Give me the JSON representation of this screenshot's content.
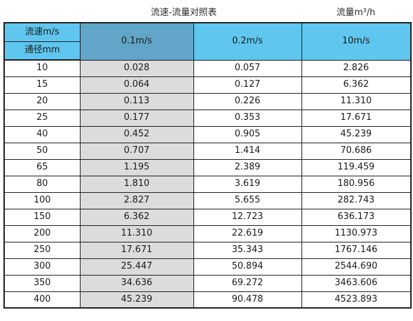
{
  "page": {
    "title": "流速-流量对照表",
    "flow_unit_label": "流量m³/h"
  },
  "chart_data": {
    "type": "table",
    "title": "流速-流量对照表",
    "unit_label": "流量m³/h",
    "header": {
      "velocity_label": "流速m/s",
      "diameter_label": "通径mm",
      "velocity_columns": [
        "0.1m/s",
        "0.2m/s",
        "10m/s"
      ]
    },
    "rows": [
      {
        "diameter": "10",
        "flow_0_1": "0.028",
        "flow_0_2": "0.057",
        "flow_10": "2.826"
      },
      {
        "diameter": "15",
        "flow_0_1": "0.064",
        "flow_0_2": "0.127",
        "flow_10": "6.362"
      },
      {
        "diameter": "20",
        "flow_0_1": "0.113",
        "flow_0_2": "0.226",
        "flow_10": "11.310"
      },
      {
        "diameter": "25",
        "flow_0_1": "0.177",
        "flow_0_2": "0.353",
        "flow_10": "17.671"
      },
      {
        "diameter": "40",
        "flow_0_1": "0.452",
        "flow_0_2": "0.905",
        "flow_10": "45.239"
      },
      {
        "diameter": "50",
        "flow_0_1": "0.707",
        "flow_0_2": "1.414",
        "flow_10": "70.686"
      },
      {
        "diameter": "65",
        "flow_0_1": "1.195",
        "flow_0_2": "2.389",
        "flow_10": "119.459"
      },
      {
        "diameter": "80",
        "flow_0_1": "1.810",
        "flow_0_2": "3.619",
        "flow_10": "180.956"
      },
      {
        "diameter": "100",
        "flow_0_1": "2.827",
        "flow_0_2": "5.655",
        "flow_10": "282.743"
      },
      {
        "diameter": "150",
        "flow_0_1": "6.362",
        "flow_0_2": "12.723",
        "flow_10": "636.173"
      },
      {
        "diameter": "200",
        "flow_0_1": "11.310",
        "flow_0_2": "22.619",
        "flow_10": "1130.973"
      },
      {
        "diameter": "250",
        "flow_0_1": "17.671",
        "flow_0_2": "35.343",
        "flow_10": "1767.146"
      },
      {
        "diameter": "300",
        "flow_0_1": "25.447",
        "flow_0_2": "50.894",
        "flow_10": "2544.690"
      },
      {
        "diameter": "350",
        "flow_0_1": "34.636",
        "flow_0_2": "69.272",
        "flow_10": "3463.606"
      },
      {
        "diameter": "400",
        "flow_0_1": "45.239",
        "flow_0_2": "90.478",
        "flow_10": "4523.893"
      }
    ]
  },
  "colors": {
    "header_blue": "#5fc6ef",
    "velocity_column_blue": "#61a5c8",
    "highlight_gray": "#dcdcdc",
    "border": "#1f1f1f",
    "text": "#1a1a1a"
  }
}
